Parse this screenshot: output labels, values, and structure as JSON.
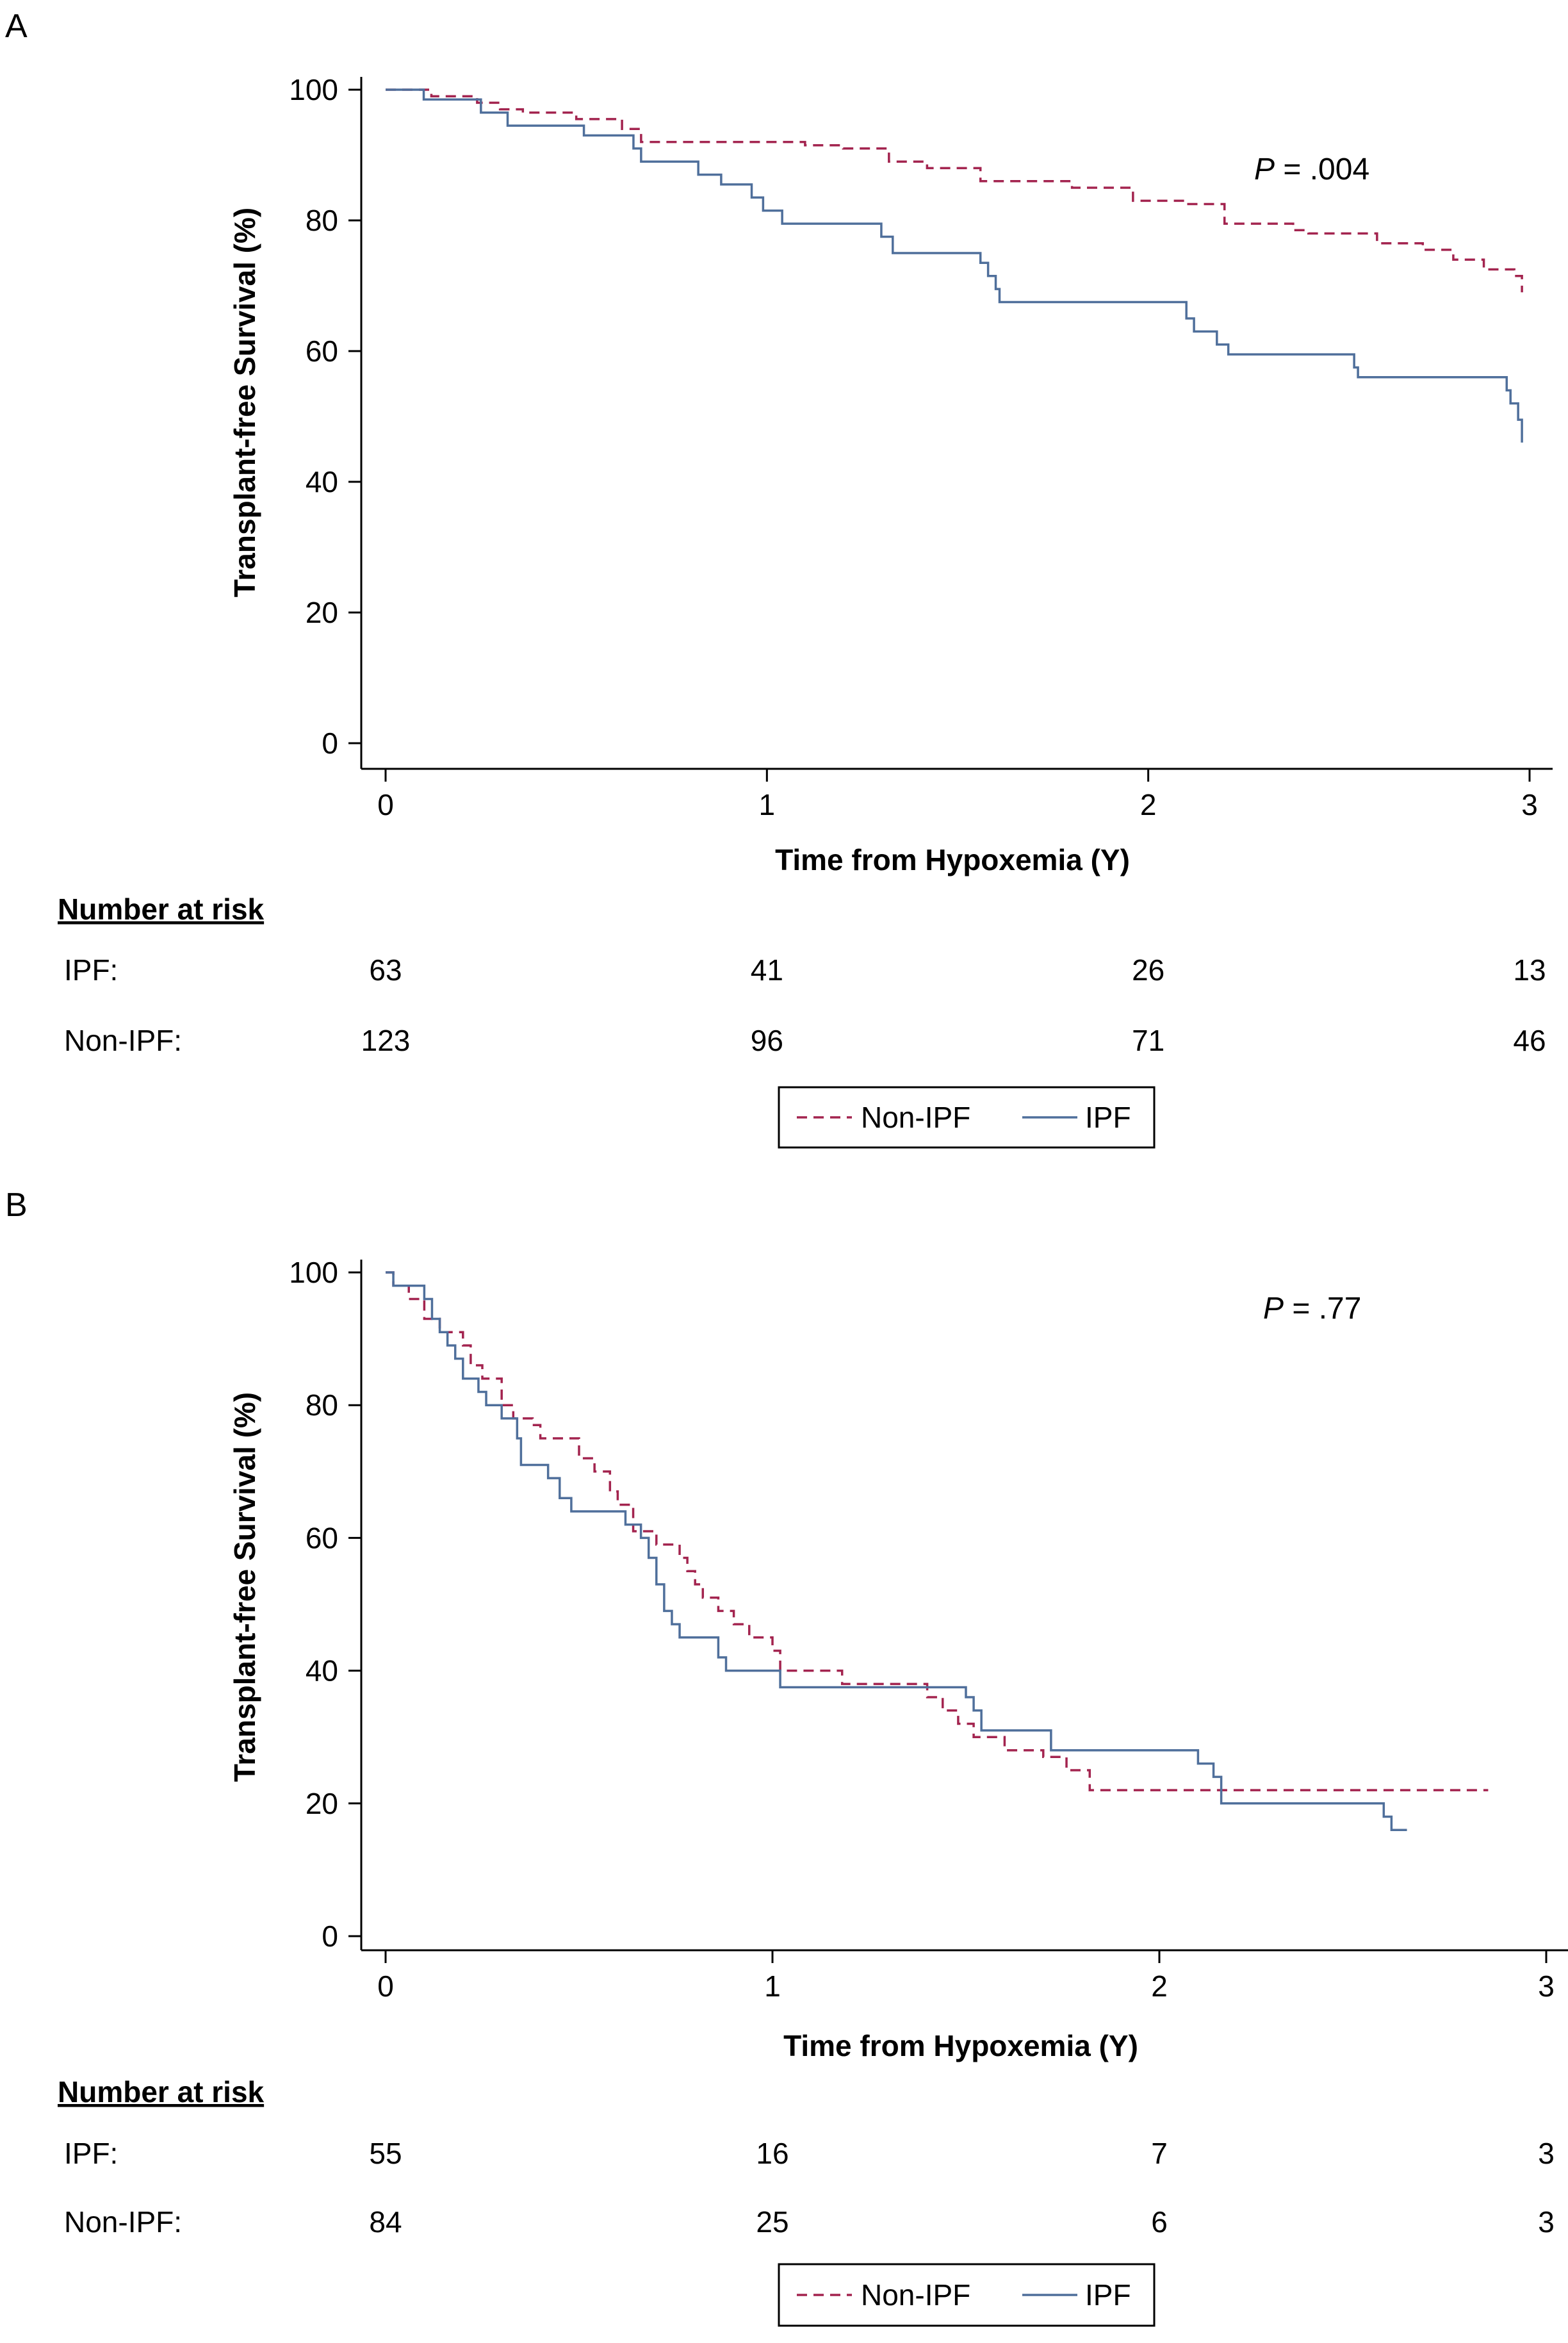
{
  "chart_data": [
    {
      "type": "line",
      "panel_label": "A",
      "xlabel": "Time from Hypoxemia (Y)",
      "ylabel": "Transplant-free Survival  (%)",
      "xlim": [
        0,
        3
      ],
      "ylim": [
        0,
        100
      ],
      "xticks": [
        "0",
        "1",
        "2",
        "3"
      ],
      "yticks": [
        "0",
        "20",
        "40",
        "60",
        "80",
        "100"
      ],
      "annotation": {
        "p_label": "P",
        "p_value": " = .004"
      },
      "legend": {
        "items": [
          "Non-IPF",
          "IPF"
        ],
        "placement": "bottom-center"
      },
      "risk_table": {
        "title": "Number at risk",
        "rows": [
          {
            "label": "IPF:",
            "values": [
              "63",
              "41",
              "26",
              "13"
            ]
          },
          {
            "label": "Non-IPF:",
            "values": [
              "123",
              "96",
              "71",
              "46"
            ]
          }
        ]
      },
      "series": [
        {
          "name": "Non-IPF",
          "color": "#a3244f",
          "dash": "dashed",
          "points": [
            [
              0,
              100
            ],
            [
              0.12,
              99
            ],
            [
              0.24,
              98
            ],
            [
              0.3,
              97
            ],
            [
              0.36,
              96.5
            ],
            [
              0.5,
              95.5
            ],
            [
              0.62,
              94
            ],
            [
              0.67,
              92
            ],
            [
              0.9,
              92
            ],
            [
              1.1,
              91.5
            ],
            [
              1.2,
              91
            ],
            [
              1.32,
              89
            ],
            [
              1.42,
              88
            ],
            [
              1.56,
              86
            ],
            [
              1.8,
              85
            ],
            [
              1.96,
              83
            ],
            [
              2.1,
              82.5
            ],
            [
              2.2,
              79.5
            ],
            [
              2.38,
              78.5
            ],
            [
              2.42,
              78
            ],
            [
              2.6,
              76.5
            ],
            [
              2.72,
              75.5
            ],
            [
              2.8,
              74
            ],
            [
              2.88,
              72.5
            ],
            [
              2.96,
              71.5
            ],
            [
              2.98,
              69
            ]
          ]
        },
        {
          "name": "IPF",
          "color": "#4f6f9b",
          "dash": "solid",
          "points": [
            [
              0,
              100
            ],
            [
              0.1,
              98.5
            ],
            [
              0.25,
              96.5
            ],
            [
              0.32,
              94.5
            ],
            [
              0.52,
              93
            ],
            [
              0.65,
              91
            ],
            [
              0.67,
              89
            ],
            [
              0.82,
              87
            ],
            [
              0.88,
              85.5
            ],
            [
              0.96,
              83.5
            ],
            [
              0.99,
              81.5
            ],
            [
              1.04,
              79.5
            ],
            [
              1.3,
              77.5
            ],
            [
              1.33,
              75
            ],
            [
              1.56,
              73.5
            ],
            [
              1.58,
              71.5
            ],
            [
              1.6,
              69.5
            ],
            [
              1.61,
              67.5
            ],
            [
              2.1,
              65
            ],
            [
              2.12,
              63
            ],
            [
              2.18,
              61
            ],
            [
              2.21,
              59.5
            ],
            [
              2.54,
              57.5
            ],
            [
              2.55,
              56
            ],
            [
              2.94,
              54
            ],
            [
              2.95,
              52
            ],
            [
              2.97,
              49.5
            ],
            [
              2.98,
              46
            ]
          ]
        }
      ]
    },
    {
      "type": "line",
      "panel_label": "B",
      "xlabel": "Time from Hypoxemia (Y)",
      "ylabel": "Transplant-free Survival  (%)",
      "xlim": [
        0,
        3
      ],
      "ylim": [
        0,
        100
      ],
      "xticks": [
        "0",
        "1",
        "2",
        "3"
      ],
      "yticks": [
        "0",
        "20",
        "40",
        "60",
        "80",
        "100"
      ],
      "annotation": {
        "p_label": "P",
        "p_value": " = .77"
      },
      "legend": {
        "items": [
          "Non-IPF",
          "IPF"
        ],
        "placement": "bottom-center"
      },
      "risk_table": {
        "title": "Number at risk",
        "rows": [
          {
            "label": "IPF:",
            "values": [
              "55",
              "16",
              "7",
              "3"
            ]
          },
          {
            "label": "Non-IPF:",
            "values": [
              "84",
              "25",
              "6",
              "3"
            ]
          }
        ]
      },
      "series": [
        {
          "name": "Non-IPF",
          "color": "#a3244f",
          "dash": "dashed",
          "points": [
            [
              0,
              100
            ],
            [
              0.02,
              98
            ],
            [
              0.06,
              96
            ],
            [
              0.1,
              93
            ],
            [
              0.14,
              91
            ],
            [
              0.2,
              89
            ],
            [
              0.22,
              86
            ],
            [
              0.25,
              84
            ],
            [
              0.3,
              80
            ],
            [
              0.33,
              78
            ],
            [
              0.38,
              77
            ],
            [
              0.4,
              75
            ],
            [
              0.5,
              72
            ],
            [
              0.54,
              70
            ],
            [
              0.58,
              67
            ],
            [
              0.6,
              65
            ],
            [
              0.64,
              61
            ],
            [
              0.7,
              59
            ],
            [
              0.76,
              57
            ],
            [
              0.78,
              55
            ],
            [
              0.8,
              53
            ],
            [
              0.82,
              51
            ],
            [
              0.86,
              49
            ],
            [
              0.9,
              47
            ],
            [
              0.94,
              45
            ],
            [
              1.0,
              43
            ],
            [
              1.02,
              40
            ],
            [
              1.18,
              38
            ],
            [
              1.4,
              36
            ],
            [
              1.44,
              34
            ],
            [
              1.48,
              32
            ],
            [
              1.52,
              30
            ],
            [
              1.6,
              28
            ],
            [
              1.7,
              27
            ],
            [
              1.76,
              25
            ],
            [
              1.82,
              22
            ],
            [
              2.85,
              22
            ]
          ]
        },
        {
          "name": "IPF",
          "color": "#4f6f9b",
          "dash": "solid",
          "points": [
            [
              0,
              100
            ],
            [
              0.02,
              98
            ],
            [
              0.1,
              96
            ],
            [
              0.12,
              93
            ],
            [
              0.14,
              91
            ],
            [
              0.16,
              89
            ],
            [
              0.18,
              87
            ],
            [
              0.2,
              84
            ],
            [
              0.24,
              82
            ],
            [
              0.26,
              80
            ],
            [
              0.3,
              78
            ],
            [
              0.34,
              75
            ],
            [
              0.35,
              71
            ],
            [
              0.42,
              69
            ],
            [
              0.45,
              66
            ],
            [
              0.48,
              64
            ],
            [
              0.62,
              62
            ],
            [
              0.66,
              60
            ],
            [
              0.68,
              57
            ],
            [
              0.7,
              53
            ],
            [
              0.72,
              49
            ],
            [
              0.74,
              47
            ],
            [
              0.76,
              45
            ],
            [
              0.86,
              42
            ],
            [
              0.88,
              40
            ],
            [
              1.02,
              37.5
            ],
            [
              1.5,
              36
            ],
            [
              1.52,
              34
            ],
            [
              1.54,
              31
            ],
            [
              1.72,
              28
            ],
            [
              2.1,
              26
            ],
            [
              2.14,
              24
            ],
            [
              2.16,
              20
            ],
            [
              2.58,
              18
            ],
            [
              2.6,
              16
            ],
            [
              2.64,
              16
            ]
          ]
        }
      ]
    }
  ]
}
